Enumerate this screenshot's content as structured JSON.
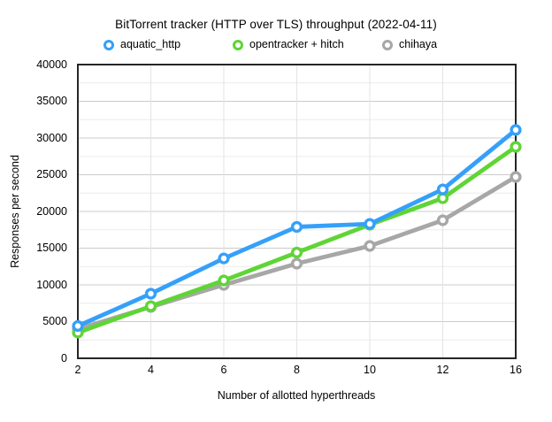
{
  "chart": {
    "title": "BitTorrent tracker (HTTP over TLS) throughput (2022-04-11)",
    "xlabel": "Number of allotted hyperthreads",
    "ylabel": "Responses per second"
  },
  "chart_data": {
    "type": "line",
    "title": "BitTorrent tracker (HTTP over TLS) throughput (2022-04-11)",
    "xlabel": "Number of allotted hyperthreads",
    "ylabel": "Responses per second",
    "categories": [
      2,
      4,
      6,
      8,
      10,
      12,
      16
    ],
    "series": [
      {
        "name": "aquatic_http",
        "color": "#35a0fa",
        "values": [
          4400,
          8800,
          13600,
          17900,
          18300,
          23000,
          31100
        ]
      },
      {
        "name": "opentracker + hitch",
        "color": "#5fd535",
        "values": [
          3500,
          7100,
          10600,
          14400,
          18200,
          21800,
          28800
        ]
      },
      {
        "name": "chihaya",
        "color": "#a7a7a7",
        "values": [
          4000,
          7000,
          10000,
          12900,
          15300,
          18800,
          24700
        ]
      }
    ],
    "ylim": [
      0,
      40000
    ],
    "y_major_step": 5000,
    "y_minor_step": 2500,
    "y_tick_labels": [
      "0",
      "5000",
      "10000",
      "15000",
      "20000",
      "25000",
      "30000",
      "35000",
      "40000"
    ],
    "x_tick_labels": [
      "2",
      "4",
      "6",
      "8",
      "10",
      "12",
      "16"
    ],
    "grid": true,
    "legend_position": "top",
    "marker_style": "open-circle",
    "colors": {
      "frame": "#262626",
      "grid_major": "#cccccc",
      "grid_minor": "#ececec",
      "grid_vertical": "#e3e3e3",
      "marker_fill": "#ffffff"
    }
  }
}
